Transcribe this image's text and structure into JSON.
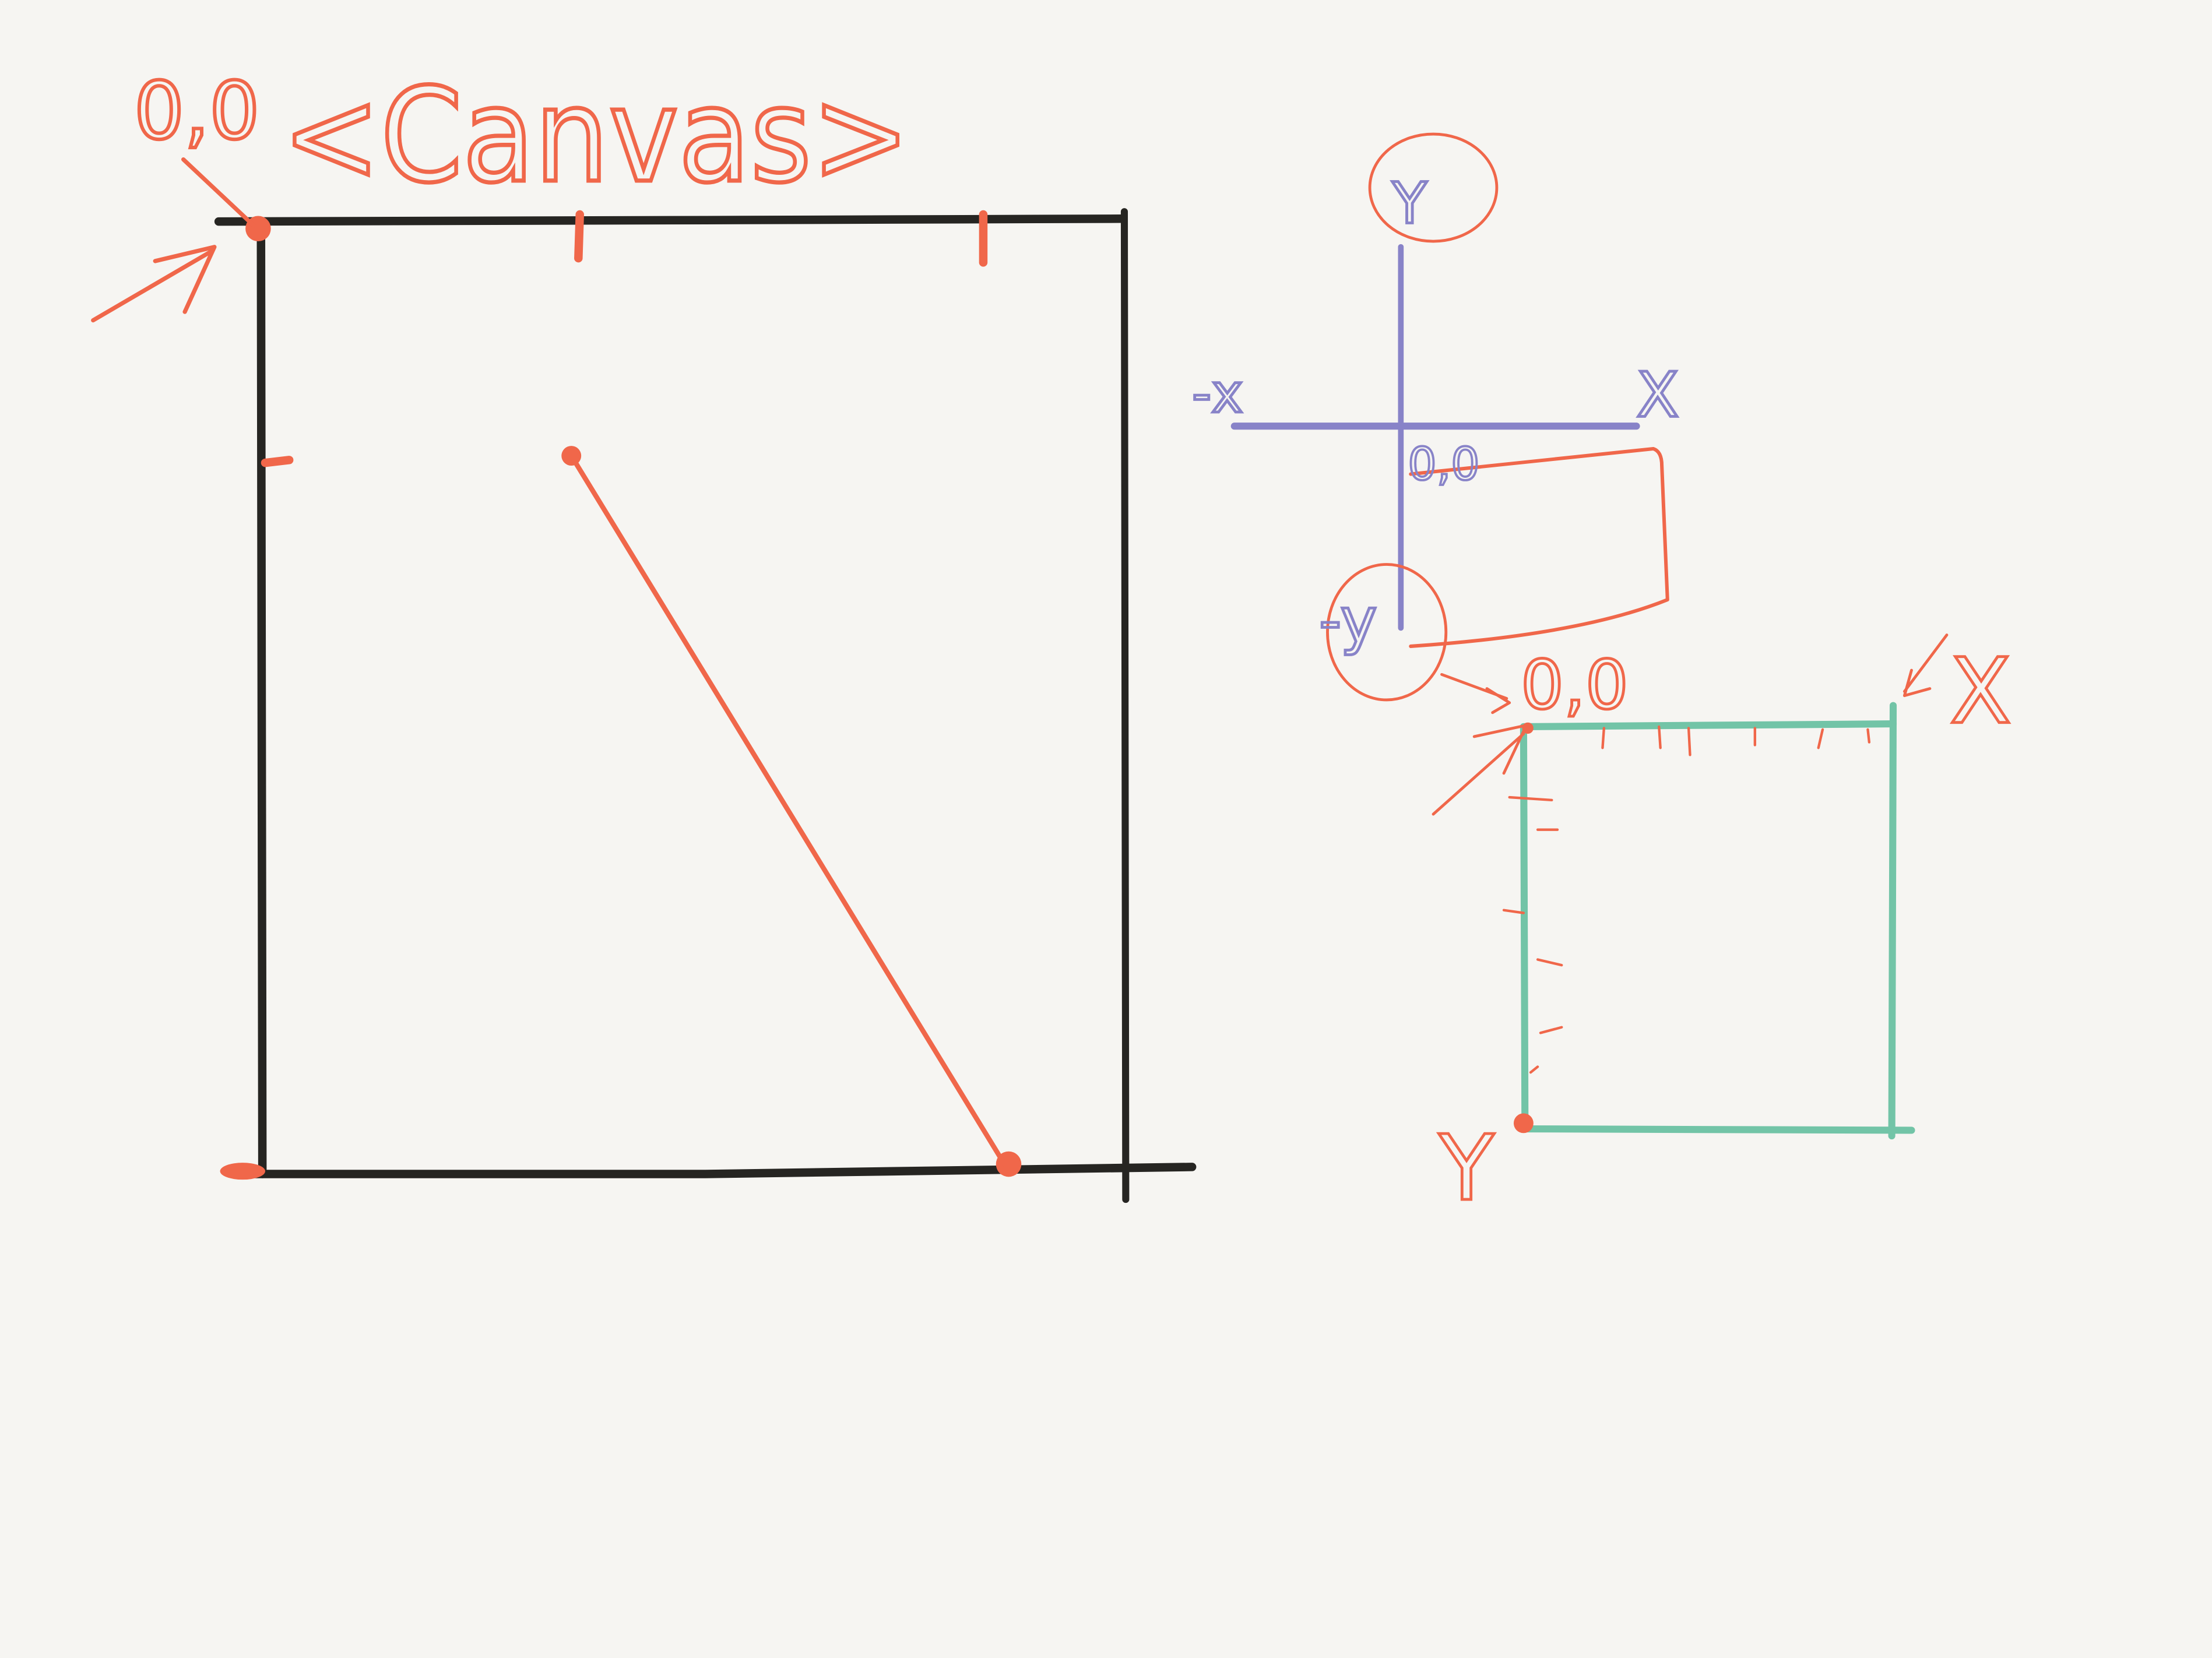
{
  "colors": {
    "background": "#f6f5f2",
    "ink_black": "#262522",
    "ink_orange": "#f0674a",
    "ink_purple": "#8883c8",
    "ink_green": "#72c4a7"
  },
  "canvas_panel": {
    "title": "<Canvas>",
    "origin_label": "0,0"
  },
  "cartesian_panel": {
    "y_label": "Y",
    "x_label": "X",
    "neg_x_label": "-x",
    "neg_y_label": "-y",
    "origin_label": "0,0"
  },
  "screen_panel": {
    "origin_label": "0,0",
    "x_label": "X",
    "y_label": "Y"
  }
}
